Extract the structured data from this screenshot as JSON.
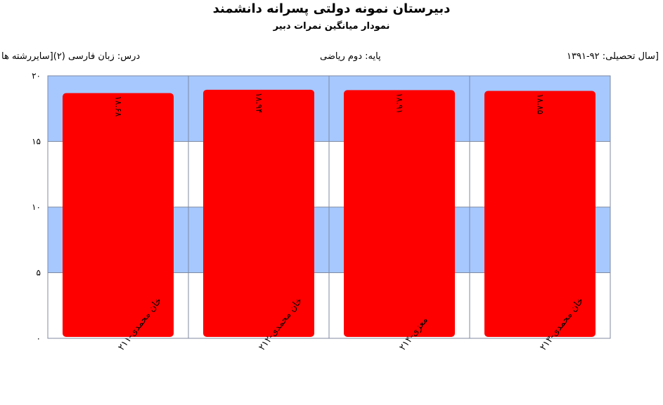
{
  "header": {
    "title": "دبیرستان  نمونه دولتی پسرانه دانشمند",
    "subtitle": "نمودار میانگین نمرات دبیر",
    "year": "[سال تحصیلی: ۹۲-۱۳۹۱",
    "grade": "پایه: دوم ریاضی",
    "course": "درس: زبان فارسی  (۲)[سایررشته ها"
  },
  "chart_data": {
    "type": "bar",
    "categories": [
      "خان محمدی-۲۱۱",
      "خان محمدی-۲۱۲",
      "معزی-۲۱۴",
      "خان محمدی-۲۱۳"
    ],
    "values": [
      18.68,
      18.94,
      18.91,
      18.85
    ],
    "value_labels": [
      "۱۸.۶۸",
      "۱۸.۹۴",
      "۱۸.۹۱",
      "۱۸.۸۵"
    ],
    "ylim": [
      0,
      20
    ],
    "yticks": [
      0,
      5,
      10,
      15,
      20
    ],
    "ytick_labels": [
      "۰",
      "۵",
      "۱۰",
      "۱۵",
      "۲۰"
    ],
    "bar_color": "#ff0000",
    "band_color": "#a6c8ff",
    "plain_band_color": "#ffffff",
    "grid_color": "#7f8aa0"
  }
}
